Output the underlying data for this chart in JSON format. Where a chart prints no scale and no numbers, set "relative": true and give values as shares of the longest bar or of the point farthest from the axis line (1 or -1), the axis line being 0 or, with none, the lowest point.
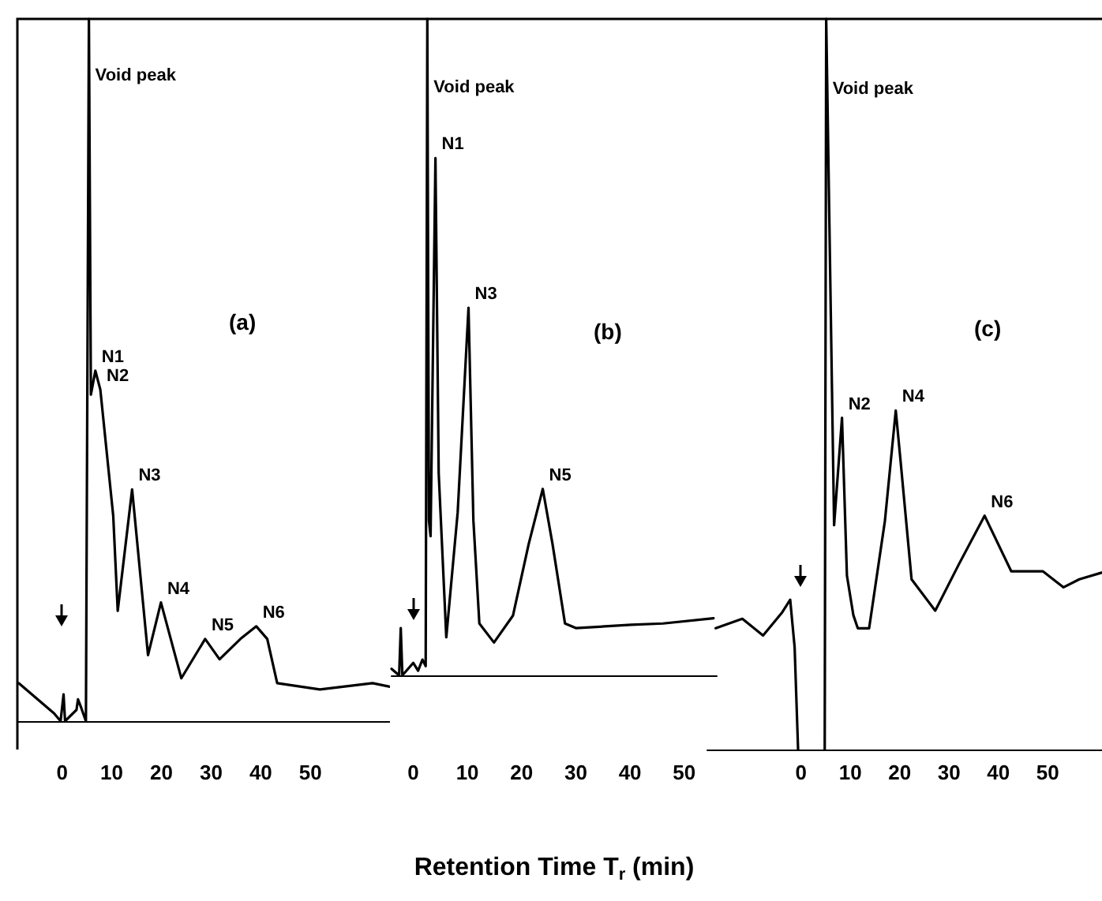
{
  "chart_data": [
    {
      "type": "line",
      "title": "(a)",
      "relative": true,
      "marker": "none",
      "color": "#000000",
      "xlim": [
        -9,
        66
      ],
      "xticks": [
        0,
        10,
        20,
        30,
        40,
        50
      ],
      "x": [
        -8.7,
        -1.6,
        -0.3,
        0.3,
        0.6,
        2.9,
        3.2,
        3.8,
        4.8,
        5.4,
        5.8,
        6.7,
        7.7,
        10.3,
        11.2,
        14.1,
        17.3,
        19.9,
        24.0,
        28.8,
        31.7,
        35.9,
        39.1,
        41.3,
        43.3,
        51.9,
        62.5,
        66
      ],
      "values": [
        0.054,
        0.011,
        0,
        0.038,
        0,
        0.016,
        0.031,
        0.02,
        0,
        1.0,
        0.465,
        0.499,
        0.472,
        0.292,
        0.157,
        0.33,
        0.094,
        0.169,
        0.061,
        0.117,
        0.088,
        0.117,
        0.135,
        0.117,
        0.054,
        0.045,
        0.054,
        0.049
      ],
      "annotations": [
        {
          "text": "Void peak",
          "x": 5.4,
          "y": 0.9
        },
        {
          "text": "N1",
          "x": 6.7,
          "y": 0.499
        },
        {
          "text": "N2",
          "x": 7.7,
          "y": 0.472
        },
        {
          "text": "N3",
          "x": 14.1,
          "y": 0.33
        },
        {
          "text": "N4",
          "x": 19.9,
          "y": 0.169
        },
        {
          "text": "N5",
          "x": 28.8,
          "y": 0.117
        },
        {
          "text": "N6",
          "x": 39.1,
          "y": 0.135
        }
      ]
    },
    {
      "type": "line",
      "title": "(b)",
      "relative": true,
      "marker": "none",
      "color": "#000000",
      "xlim": [
        -4,
        56
      ],
      "xticks": [
        0,
        10,
        20,
        30,
        40,
        50
      ],
      "xlabel": "Retention Time T$_{r}$ (min)",
      "x": [
        -4,
        -2.6,
        -2.3,
        -2.0,
        0,
        0.9,
        1.7,
        2.3,
        2.6,
        2.9,
        3.2,
        4.1,
        4.7,
        6.1,
        8.2,
        10.2,
        11.1,
        12.2,
        14.9,
        18.4,
        21.3,
        23.9,
        25.7,
        28.0,
        30.0,
        40.2,
        46.1,
        55.4
      ],
      "values": [
        0.01,
        0,
        0.072,
        0,
        0.019,
        0.007,
        0.024,
        0.014,
        1.0,
        0.236,
        0.212,
        0.788,
        0.308,
        0.058,
        0.248,
        0.56,
        0.236,
        0.079,
        0.05,
        0.091,
        0.2,
        0.284,
        0.2,
        0.079,
        0.072,
        0.077,
        0.079,
        0.087
      ],
      "annotations": [
        {
          "text": "Void peak",
          "x": 2.6,
          "y": 0.875
        },
        {
          "text": "N1",
          "x": 4.1,
          "y": 0.788
        },
        {
          "text": "N3",
          "x": 10.2,
          "y": 0.56
        },
        {
          "text": "N5",
          "x": 23.9,
          "y": 0.284
        }
      ]
    },
    {
      "type": "line",
      "title": "(c)",
      "relative": true,
      "marker": "none",
      "color": "#000000",
      "xlim": [
        -19,
        61
      ],
      "xticks": [
        0,
        10,
        20,
        30,
        40,
        50
      ],
      "x": [
        -17.3,
        -11.9,
        -7.7,
        -3.8,
        -2.2,
        -1.3,
        -0.6,
        2,
        4.8,
        5.1,
        6.7,
        8.3,
        9.3,
        10.6,
        11.5,
        13.8,
        17.0,
        19.2,
        20.2,
        22.4,
        27.2,
        32.1,
        37.2,
        42.6,
        49.0,
        53.2,
        56.4,
        60.9
      ],
      "values": [
        0.166,
        0.179,
        0.156,
        0.188,
        0.205,
        0.14,
        0,
        null,
        0,
        1.0,
        0.307,
        0.454,
        0.238,
        0.184,
        0.166,
        0.166,
        0.313,
        0.464,
        0.393,
        0.233,
        0.19,
        0.255,
        0.32,
        0.244,
        0.244,
        0.222,
        0.233,
        0.242
      ],
      "annotations": [
        {
          "text": "Void peak",
          "x": 5.1,
          "y": 0.886
        },
        {
          "text": "N2",
          "x": 8.3,
          "y": 0.454
        },
        {
          "text": "N4",
          "x": 19.2,
          "y": 0.464
        },
        {
          "text": "N6",
          "x": 37.2,
          "y": 0.32
        }
      ]
    }
  ]
}
